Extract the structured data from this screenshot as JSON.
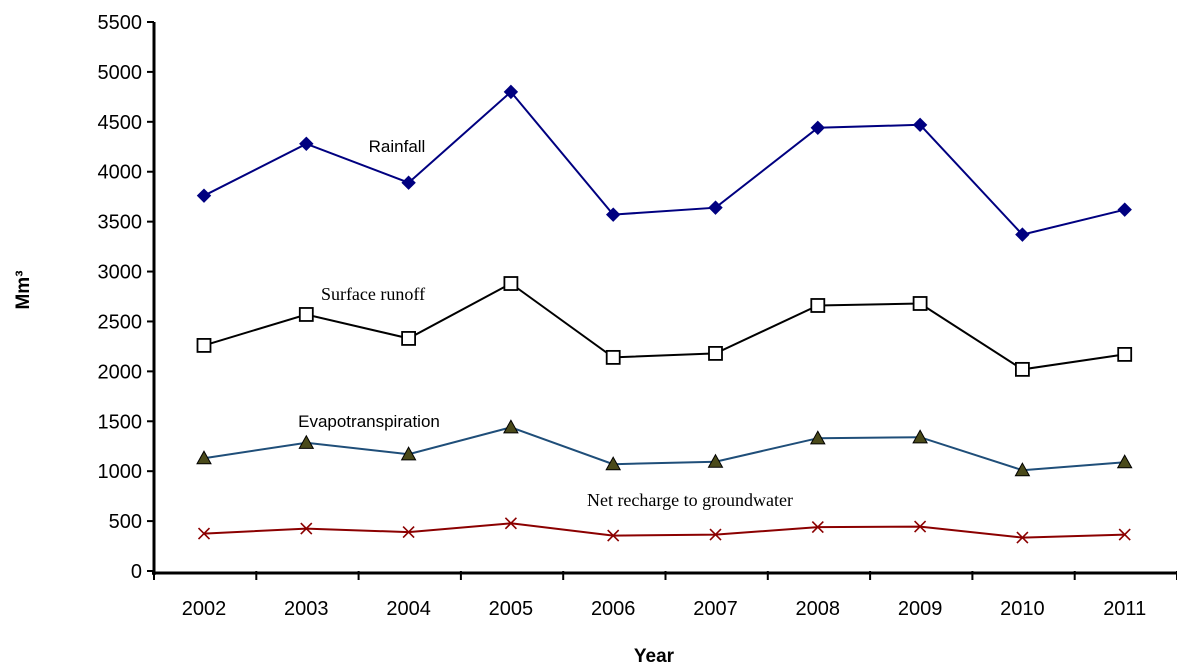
{
  "chart_data": {
    "type": "line",
    "xlabel": "Year",
    "ylabel": "Mm³",
    "ylim": [
      0,
      5500
    ],
    "ytick_step": 500,
    "categories": [
      "2002",
      "2003",
      "2004",
      "2005",
      "2006",
      "2007",
      "2008",
      "2009",
      "2010",
      "2011"
    ],
    "series": [
      {
        "name": "Rainfall",
        "color": "#000080",
        "marker": "diamond",
        "values": [
          3760,
          4280,
          3890,
          4800,
          3570,
          3640,
          4440,
          4470,
          3370,
          3620
        ]
      },
      {
        "name": "Surface runoff",
        "color": "#000000",
        "marker": "square",
        "values": [
          2260,
          2570,
          2330,
          2880,
          2140,
          2180,
          2660,
          2680,
          2020,
          2170
        ]
      },
      {
        "name": "Evapotranspiration",
        "color": "#1f4e79",
        "marker": "triangle",
        "values": [
          1130,
          1285,
          1170,
          1440,
          1070,
          1095,
          1330,
          1340,
          1010,
          1090
        ]
      },
      {
        "name": "Net recharge to groundwater",
        "color": "#8b0000",
        "marker": "x",
        "values": [
          375,
          425,
          390,
          478,
          355,
          365,
          440,
          445,
          335,
          365
        ]
      }
    ]
  }
}
